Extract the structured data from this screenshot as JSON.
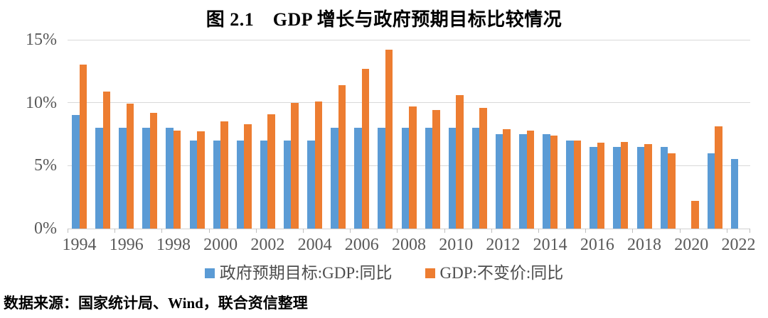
{
  "title": "图 2.1　GDP 增长与政府预期目标比较情况",
  "source_note": "数据来源：国家统计局、Wind，联合资信整理",
  "colors": {
    "target_series": "#5B9BD5",
    "actual_series": "#ED7D31",
    "gridline": "#D9D9D9",
    "axis_text": "#595959",
    "title_text": "#000000"
  },
  "legend": [
    {
      "key": "target",
      "label": "政府预期目标:GDP:同比",
      "color": "#5B9BD5"
    },
    {
      "key": "actual",
      "label": "GDP:不变价:同比",
      "color": "#ED7D31"
    }
  ],
  "chart_data": {
    "type": "bar",
    "title": "图 2.1　GDP 增长与政府预期目标比较情况",
    "xlabel": "",
    "ylabel": "",
    "ylim": [
      0,
      15
    ],
    "y_ticks": [
      0,
      5,
      10,
      15
    ],
    "y_tick_suffix": "%",
    "x_label_interval": 2,
    "grid": true,
    "legend_position": "bottom",
    "categories": [
      1994,
      1995,
      1996,
      1997,
      1998,
      1999,
      2000,
      2001,
      2002,
      2003,
      2004,
      2005,
      2006,
      2007,
      2008,
      2009,
      2010,
      2011,
      2012,
      2013,
      2014,
      2015,
      2016,
      2017,
      2018,
      2019,
      2020,
      2021,
      2022
    ],
    "series": [
      {
        "key": "target",
        "name": "政府预期目标:GDP:同比",
        "color": "#5B9BD5",
        "values": [
          9.0,
          8.0,
          8.0,
          8.0,
          8.0,
          7.0,
          7.0,
          7.0,
          7.0,
          7.0,
          7.0,
          8.0,
          8.0,
          8.0,
          8.0,
          8.0,
          8.0,
          8.0,
          7.5,
          7.5,
          7.5,
          7.0,
          6.5,
          6.5,
          6.5,
          6.5,
          null,
          6.0,
          5.5
        ]
      },
      {
        "key": "actual",
        "name": "GDP:不变价:同比",
        "color": "#ED7D31",
        "values": [
          13.0,
          10.9,
          9.9,
          9.2,
          7.8,
          7.7,
          8.5,
          8.3,
          9.1,
          10.0,
          10.1,
          11.4,
          12.7,
          14.2,
          9.7,
          9.4,
          10.6,
          9.6,
          7.9,
          7.8,
          7.4,
          7.0,
          6.8,
          6.9,
          6.7,
          6.0,
          2.2,
          8.1,
          null
        ]
      }
    ]
  }
}
